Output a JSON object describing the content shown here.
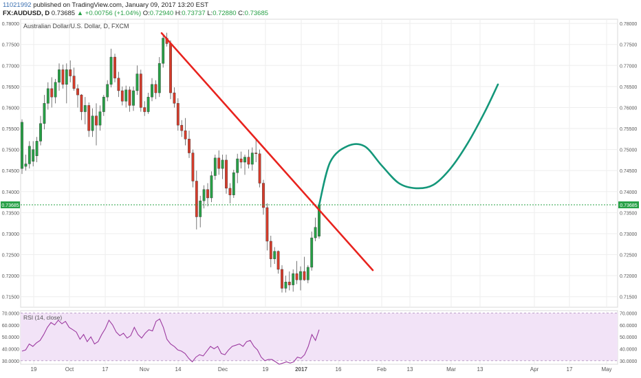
{
  "header": {
    "user_id": "11021992",
    "published_text": "published on TradingView.com, January 09, 2017 13:20 EST",
    "symbol": "FX:AUDUSD, D",
    "last": "0.73685",
    "change": "+0.00756 (+1.04%)",
    "o_label": "O:",
    "o_value": "0.72940",
    "h_label": "H:",
    "h_value": "0.73737",
    "l_label": "L:",
    "l_value": "0.72880",
    "c_label": "C:",
    "c_value": "0.73685"
  },
  "chart_data": [
    {
      "type": "candlestick",
      "title": "Australian Dollar/U.S. Dollar, D, FXCM",
      "ylim": [
        0.7125,
        0.781
      ],
      "y_ticks": [
        "0.78000",
        "0.77500",
        "0.77000",
        "0.76500",
        "0.76000",
        "0.75500",
        "0.75000",
        "0.74500",
        "0.74000",
        "0.73500",
        "0.73000",
        "0.72500",
        "0.72000",
        "0.71500"
      ],
      "x_ticks": [
        {
          "label": "19",
          "pos": 49
        },
        {
          "label": "Oct",
          "pos": 101
        },
        {
          "label": "17",
          "pos": 153
        },
        {
          "label": "Nov",
          "pos": 210
        },
        {
          "label": "14",
          "pos": 259
        },
        {
          "label": "Dec",
          "pos": 324
        },
        {
          "label": "19",
          "pos": 386
        },
        {
          "label": "2017",
          "pos": 438
        },
        {
          "label": "16",
          "pos": 492
        },
        {
          "label": "Feb",
          "pos": 555
        },
        {
          "label": "13",
          "pos": 596
        },
        {
          "label": "Mar",
          "pos": 656
        },
        {
          "label": "13",
          "pos": 698
        },
        {
          "label": "Apr",
          "pos": 777
        },
        {
          "label": "17",
          "pos": 828
        },
        {
          "label": "May",
          "pos": 882
        }
      ],
      "last_price_label": "0.73685",
      "last_price": 0.73685,
      "candles": [
        {
          "o": 0.7455,
          "h": 0.7572,
          "l": 0.7442,
          "c": 0.7565
        },
        {
          "o": 0.746,
          "h": 0.7488,
          "l": 0.745,
          "c": 0.7466
        },
        {
          "o": 0.7466,
          "h": 0.752,
          "l": 0.7455,
          "c": 0.7508
        },
        {
          "o": 0.7472,
          "h": 0.752,
          "l": 0.746,
          "c": 0.75
        },
        {
          "o": 0.7485,
          "h": 0.753,
          "l": 0.747,
          "c": 0.752
        },
        {
          "o": 0.752,
          "h": 0.758,
          "l": 0.751,
          "c": 0.7562
        },
        {
          "o": 0.7562,
          "h": 0.763,
          "l": 0.7548,
          "c": 0.761
        },
        {
          "o": 0.761,
          "h": 0.766,
          "l": 0.7595,
          "c": 0.7645
        },
        {
          "o": 0.7645,
          "h": 0.7672,
          "l": 0.76,
          "c": 0.7625
        },
        {
          "o": 0.7625,
          "h": 0.7668,
          "l": 0.761,
          "c": 0.766
        },
        {
          "o": 0.766,
          "h": 0.7705,
          "l": 0.764,
          "c": 0.769
        },
        {
          "o": 0.769,
          "h": 0.7702,
          "l": 0.7645,
          "c": 0.7655
        },
        {
          "o": 0.7655,
          "h": 0.7705,
          "l": 0.761,
          "c": 0.769
        },
        {
          "o": 0.769,
          "h": 0.7712,
          "l": 0.766,
          "c": 0.7675
        },
        {
          "o": 0.7675,
          "h": 0.7695,
          "l": 0.764,
          "c": 0.7645
        },
        {
          "o": 0.7645,
          "h": 0.7655,
          "l": 0.76,
          "c": 0.763
        },
        {
          "o": 0.763,
          "h": 0.7632,
          "l": 0.757,
          "c": 0.759
        },
        {
          "o": 0.759,
          "h": 0.7625,
          "l": 0.756,
          "c": 0.7605
        },
        {
          "o": 0.7605,
          "h": 0.7612,
          "l": 0.753,
          "c": 0.7545
        },
        {
          "o": 0.7545,
          "h": 0.7598,
          "l": 0.753,
          "c": 0.758
        },
        {
          "o": 0.758,
          "h": 0.761,
          "l": 0.751,
          "c": 0.7558
        },
        {
          "o": 0.7558,
          "h": 0.7605,
          "l": 0.7545,
          "c": 0.759
        },
        {
          "o": 0.759,
          "h": 0.763,
          "l": 0.758,
          "c": 0.7625
        },
        {
          "o": 0.7625,
          "h": 0.7665,
          "l": 0.7615,
          "c": 0.7655
        },
        {
          "o": 0.7655,
          "h": 0.774,
          "l": 0.7648,
          "c": 0.772
        },
        {
          "o": 0.772,
          "h": 0.7728,
          "l": 0.766,
          "c": 0.767
        },
        {
          "o": 0.767,
          "h": 0.7685,
          "l": 0.7625,
          "c": 0.764
        },
        {
          "o": 0.764,
          "h": 0.765,
          "l": 0.7605,
          "c": 0.7615
        },
        {
          "o": 0.7615,
          "h": 0.7652,
          "l": 0.76,
          "c": 0.7642
        },
        {
          "o": 0.7642,
          "h": 0.765,
          "l": 0.759,
          "c": 0.7605
        },
        {
          "o": 0.7605,
          "h": 0.765,
          "l": 0.7592,
          "c": 0.764
        },
        {
          "o": 0.764,
          "h": 0.77,
          "l": 0.763,
          "c": 0.768
        },
        {
          "o": 0.768,
          "h": 0.769,
          "l": 0.759,
          "c": 0.76
        },
        {
          "o": 0.76,
          "h": 0.7615,
          "l": 0.758,
          "c": 0.759
        },
        {
          "o": 0.759,
          "h": 0.7635,
          "l": 0.7585,
          "c": 0.7625
        },
        {
          "o": 0.7625,
          "h": 0.767,
          "l": 0.7615,
          "c": 0.7655
        },
        {
          "o": 0.7655,
          "h": 0.7665,
          "l": 0.762,
          "c": 0.7635
        },
        {
          "o": 0.7635,
          "h": 0.772,
          "l": 0.7625,
          "c": 0.7705
        },
        {
          "o": 0.7705,
          "h": 0.7775,
          "l": 0.7695,
          "c": 0.7765
        },
        {
          "o": 0.7765,
          "h": 0.7778,
          "l": 0.7745,
          "c": 0.7752
        },
        {
          "o": 0.7752,
          "h": 0.776,
          "l": 0.762,
          "c": 0.7635
        },
        {
          "o": 0.7635,
          "h": 0.7648,
          "l": 0.76,
          "c": 0.761
        },
        {
          "o": 0.761,
          "h": 0.7622,
          "l": 0.7545,
          "c": 0.7558
        },
        {
          "o": 0.7558,
          "h": 0.757,
          "l": 0.753,
          "c": 0.7545
        },
        {
          "o": 0.7545,
          "h": 0.7575,
          "l": 0.751,
          "c": 0.7525
        },
        {
          "o": 0.7525,
          "h": 0.7545,
          "l": 0.748,
          "c": 0.7492
        },
        {
          "o": 0.7492,
          "h": 0.75,
          "l": 0.741,
          "c": 0.7425
        },
        {
          "o": 0.7425,
          "h": 0.745,
          "l": 0.731,
          "c": 0.734
        },
        {
          "o": 0.734,
          "h": 0.739,
          "l": 0.7315,
          "c": 0.7378
        },
        {
          "o": 0.7378,
          "h": 0.7415,
          "l": 0.736,
          "c": 0.7405
        },
        {
          "o": 0.7405,
          "h": 0.742,
          "l": 0.7365,
          "c": 0.7385
        },
        {
          "o": 0.7385,
          "h": 0.7448,
          "l": 0.7375,
          "c": 0.7438
        },
        {
          "o": 0.7438,
          "h": 0.7488,
          "l": 0.7428,
          "c": 0.748
        },
        {
          "o": 0.748,
          "h": 0.7498,
          "l": 0.744,
          "c": 0.7455
        },
        {
          "o": 0.7455,
          "h": 0.7488,
          "l": 0.743,
          "c": 0.7475
        },
        {
          "o": 0.7475,
          "h": 0.7488,
          "l": 0.7395,
          "c": 0.7408
        },
        {
          "o": 0.7408,
          "h": 0.742,
          "l": 0.7372,
          "c": 0.7392
        },
        {
          "o": 0.7392,
          "h": 0.7452,
          "l": 0.7385,
          "c": 0.7445
        },
        {
          "o": 0.7445,
          "h": 0.749,
          "l": 0.742,
          "c": 0.7478
        },
        {
          "o": 0.7478,
          "h": 0.7495,
          "l": 0.7455,
          "c": 0.747
        },
        {
          "o": 0.747,
          "h": 0.7488,
          "l": 0.744,
          "c": 0.7482
        },
        {
          "o": 0.7482,
          "h": 0.75,
          "l": 0.7455,
          "c": 0.7465
        },
        {
          "o": 0.7465,
          "h": 0.7505,
          "l": 0.745,
          "c": 0.7492
        },
        {
          "o": 0.7492,
          "h": 0.7525,
          "l": 0.747,
          "c": 0.749
        },
        {
          "o": 0.749,
          "h": 0.75,
          "l": 0.741,
          "c": 0.742
        },
        {
          "o": 0.742,
          "h": 0.7428,
          "l": 0.7345,
          "c": 0.7362
        },
        {
          "o": 0.7362,
          "h": 0.7372,
          "l": 0.726,
          "c": 0.7282
        },
        {
          "o": 0.7282,
          "h": 0.7295,
          "l": 0.722,
          "c": 0.724
        },
        {
          "o": 0.724,
          "h": 0.7268,
          "l": 0.7228,
          "c": 0.7258
        },
        {
          "o": 0.7258,
          "h": 0.726,
          "l": 0.7205,
          "c": 0.7215
        },
        {
          "o": 0.7215,
          "h": 0.7225,
          "l": 0.716,
          "c": 0.717
        },
        {
          "o": 0.717,
          "h": 0.72,
          "l": 0.716,
          "c": 0.7185
        },
        {
          "o": 0.7185,
          "h": 0.721,
          "l": 0.7165,
          "c": 0.7178
        },
        {
          "o": 0.7178,
          "h": 0.7215,
          "l": 0.7162,
          "c": 0.7205
        },
        {
          "o": 0.7205,
          "h": 0.7235,
          "l": 0.718,
          "c": 0.719
        },
        {
          "o": 0.719,
          "h": 0.7222,
          "l": 0.7165,
          "c": 0.721
        },
        {
          "o": 0.721,
          "h": 0.7245,
          "l": 0.7188,
          "c": 0.719
        },
        {
          "o": 0.719,
          "h": 0.7225,
          "l": 0.7182,
          "c": 0.722
        },
        {
          "o": 0.722,
          "h": 0.7305,
          "l": 0.7212,
          "c": 0.729
        },
        {
          "o": 0.729,
          "h": 0.7338,
          "l": 0.7282,
          "c": 0.7315
        },
        {
          "o": 0.7294,
          "h": 0.73737,
          "l": 0.7288,
          "c": 0.73685
        }
      ],
      "trendline": {
        "from": [
          235,
          0.7777
        ],
        "to": [
          542,
          0.7213
        ],
        "color": "#e8231e"
      },
      "projection": {
        "color": "#14977a",
        "points": [
          [
            464,
            0.7368
          ],
          [
            480,
            0.747
          ],
          [
            505,
            0.7508
          ],
          [
            530,
            0.7508
          ],
          [
            555,
            0.7462
          ],
          [
            580,
            0.742
          ],
          [
            605,
            0.7408
          ],
          [
            630,
            0.7416
          ],
          [
            655,
            0.7455
          ],
          [
            680,
            0.7515
          ],
          [
            705,
            0.759
          ],
          [
            724,
            0.7655
          ]
        ]
      }
    },
    {
      "type": "line",
      "title": "RSI (14, close)",
      "ylim": [
        27,
        72
      ],
      "y_ticks": [
        "70.0000",
        "60.0000",
        "50.0000",
        "40.0000",
        "30.0000"
      ],
      "band": [
        30,
        70
      ],
      "series": [
        {
          "values": [
            38,
            39,
            44,
            42,
            45,
            47,
            52,
            58,
            62,
            60,
            64,
            61,
            63,
            58,
            56,
            54,
            48,
            52,
            46,
            50,
            44,
            46,
            52,
            57,
            64,
            60,
            54,
            51,
            53,
            49,
            51,
            58,
            52,
            49,
            53,
            56,
            55,
            63,
            65,
            58,
            48,
            44,
            42,
            39,
            38,
            36,
            32,
            29,
            33,
            35,
            34,
            38,
            42,
            40,
            42,
            36,
            35,
            39,
            42,
            43,
            44,
            42,
            46,
            47,
            42,
            39,
            33,
            30,
            31,
            31,
            29,
            27,
            28,
            29,
            28,
            29,
            33,
            32,
            35,
            42,
            52,
            47,
            56
          ]
        }
      ]
    }
  ]
}
